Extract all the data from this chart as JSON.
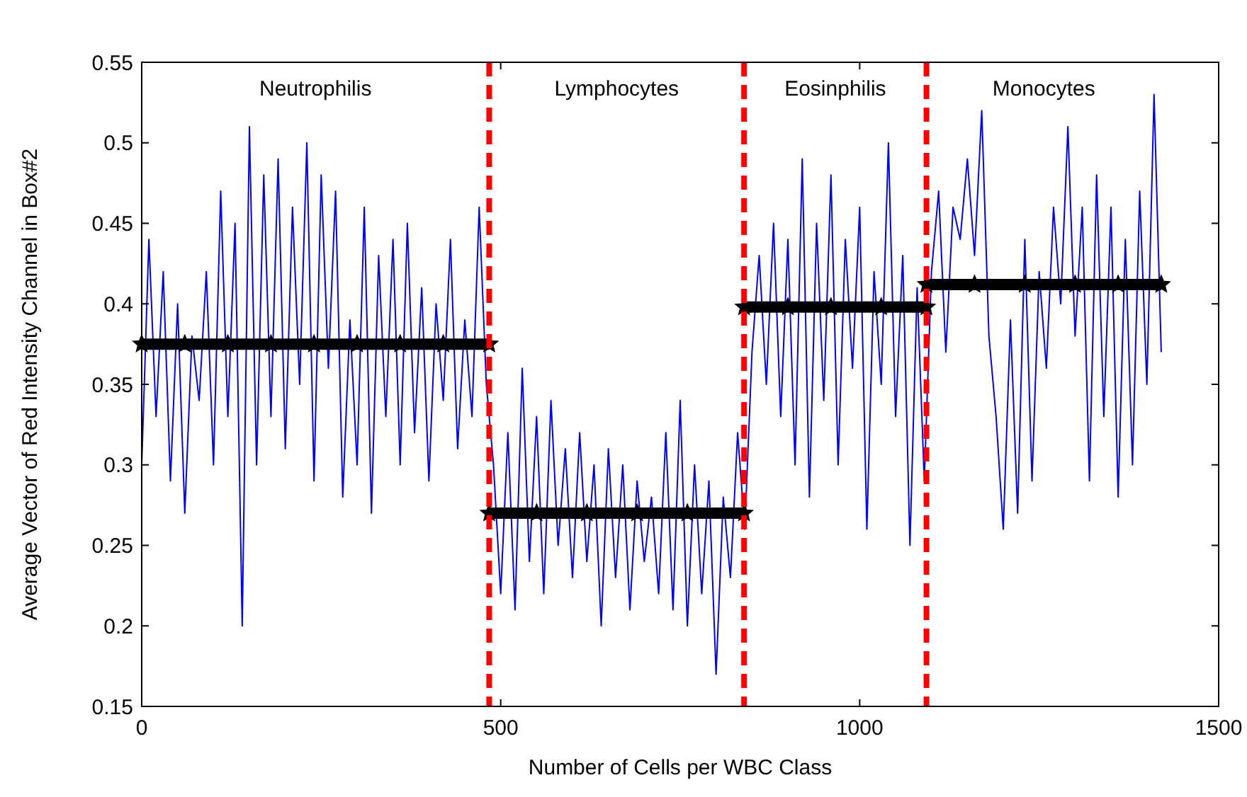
{
  "chart_data": {
    "type": "line",
    "xlabel": "Number of Cells per WBC Class",
    "ylabel": "Average Vector of Red Intensity Channel in Box#2",
    "xlim": [
      0,
      1500
    ],
    "ylim": [
      0.15,
      0.55
    ],
    "xticks": [
      0,
      500,
      1000,
      1500
    ],
    "yticks": [
      0.15,
      0.2,
      0.25,
      0.3,
      0.35,
      0.4,
      0.45,
      0.5,
      0.55
    ],
    "grid": false,
    "series": [
      {
        "color": "#0000ff",
        "marker": "none",
        "x": [
          0,
          10,
          20,
          30,
          40,
          50,
          60,
          70,
          80,
          90,
          100,
          110,
          120,
          130,
          140,
          150,
          160,
          170,
          180,
          190,
          200,
          210,
          220,
          230,
          240,
          250,
          260,
          270,
          280,
          290,
          300,
          310,
          320,
          330,
          340,
          350,
          360,
          370,
          380,
          390,
          400,
          410,
          420,
          430,
          440,
          450,
          460,
          470,
          480,
          490,
          500,
          510,
          520,
          530,
          540,
          550,
          560,
          570,
          580,
          590,
          600,
          610,
          620,
          630,
          640,
          650,
          660,
          670,
          680,
          690,
          700,
          710,
          720,
          730,
          740,
          750,
          760,
          770,
          780,
          790,
          800,
          810,
          820,
          830,
          840,
          850,
          860,
          870,
          880,
          890,
          900,
          910,
          920,
          930,
          940,
          950,
          960,
          970,
          980,
          990,
          1000,
          1010,
          1020,
          1030,
          1040,
          1050,
          1060,
          1070,
          1080,
          1090,
          1100,
          1110,
          1120,
          1130,
          1140,
          1150,
          1160,
          1170,
          1180,
          1190,
          1200,
          1210,
          1220,
          1230,
          1240,
          1250,
          1260,
          1270,
          1280,
          1290,
          1300,
          1310,
          1320,
          1330,
          1340,
          1350,
          1360,
          1370,
          1380,
          1390,
          1400,
          1410,
          1420
        ],
        "values": [
          0.3,
          0.44,
          0.33,
          0.42,
          0.29,
          0.4,
          0.27,
          0.38,
          0.34,
          0.42,
          0.3,
          0.47,
          0.33,
          0.45,
          0.2,
          0.51,
          0.3,
          0.48,
          0.33,
          0.49,
          0.31,
          0.46,
          0.35,
          0.5,
          0.29,
          0.48,
          0.36,
          0.47,
          0.28,
          0.39,
          0.3,
          0.46,
          0.27,
          0.43,
          0.33,
          0.44,
          0.3,
          0.45,
          0.32,
          0.41,
          0.29,
          0.4,
          0.34,
          0.44,
          0.31,
          0.39,
          0.33,
          0.46,
          0.35,
          0.3,
          0.22,
          0.32,
          0.21,
          0.36,
          0.24,
          0.33,
          0.22,
          0.34,
          0.25,
          0.31,
          0.23,
          0.32,
          0.24,
          0.3,
          0.2,
          0.31,
          0.23,
          0.3,
          0.21,
          0.29,
          0.24,
          0.28,
          0.22,
          0.32,
          0.21,
          0.34,
          0.2,
          0.3,
          0.22,
          0.29,
          0.17,
          0.28,
          0.23,
          0.32,
          0.26,
          0.37,
          0.43,
          0.35,
          0.45,
          0.33,
          0.44,
          0.3,
          0.49,
          0.28,
          0.45,
          0.34,
          0.48,
          0.3,
          0.44,
          0.36,
          0.46,
          0.26,
          0.42,
          0.35,
          0.5,
          0.33,
          0.43,
          0.25,
          0.41,
          0.29,
          0.42,
          0.47,
          0.37,
          0.46,
          0.44,
          0.49,
          0.43,
          0.52,
          0.38,
          0.33,
          0.26,
          0.39,
          0.27,
          0.44,
          0.29,
          0.42,
          0.36,
          0.46,
          0.4,
          0.51,
          0.38,
          0.46,
          0.29,
          0.48,
          0.33,
          0.46,
          0.28,
          0.44,
          0.3,
          0.47,
          0.35,
          0.53,
          0.37
        ]
      },
      {
        "color": "#000000",
        "marker": "star",
        "x": [
          0,
          60,
          120,
          180,
          240,
          300,
          360,
          420,
          484
        ],
        "values": [
          0.375,
          0.375,
          0.375,
          0.375,
          0.375,
          0.375,
          0.375,
          0.375,
          0.375
        ]
      },
      {
        "color": "#000000",
        "marker": "star",
        "x": [
          484,
          550,
          620,
          690,
          760,
          839
        ],
        "values": [
          0.27,
          0.27,
          0.27,
          0.27,
          0.27,
          0.27
        ]
      },
      {
        "color": "#000000",
        "marker": "star",
        "x": [
          839,
          900,
          960,
          1030,
          1093
        ],
        "values": [
          0.398,
          0.398,
          0.398,
          0.398,
          0.398
        ]
      },
      {
        "color": "#000000",
        "marker": "star",
        "x": [
          1093,
          1160,
          1230,
          1300,
          1360,
          1420
        ],
        "values": [
          0.412,
          0.412,
          0.412,
          0.412,
          0.412,
          0.412
        ]
      }
    ],
    "ref_lines": [
      {
        "axis": "x",
        "value": 484,
        "color": "#ff0000",
        "line_style": "dashed"
      },
      {
        "axis": "x",
        "value": 839,
        "color": "#ff0000",
        "line_style": "dashed"
      },
      {
        "axis": "x",
        "value": 1093,
        "color": "#ff0000",
        "line_style": "dashed"
      }
    ],
    "annotations": [
      "Neutrophilis",
      "Lymphocytes",
      "Eosinphilis",
      "Monocytes"
    ]
  }
}
